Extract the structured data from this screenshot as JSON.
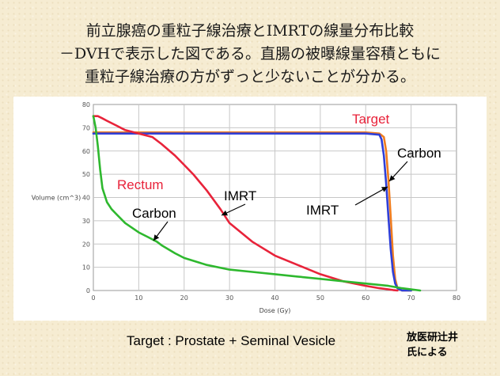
{
  "slide": {
    "heading_lines": [
      "前立腺癌の重粒子線治療とIMRTの線量分布比較",
      "－DVHで表示した図である。直腸の被曝線量容積ともに",
      "重粒子線治療の方がずっと少ないことが分かる。"
    ],
    "footnote": "Target : Prostate + Seminal Vesicle",
    "credit_lines": [
      "放医研辻井",
      "氏による"
    ]
  },
  "chart_data": {
    "type": "line",
    "xlabel": "Dose (Gy)",
    "ylabel": "Volume (cm^3)",
    "xlim": [
      0,
      80
    ],
    "ylim": [
      0,
      80
    ],
    "x_ticks": [
      0,
      10,
      20,
      30,
      40,
      50,
      60,
      70,
      80
    ],
    "y_ticks": [
      0,
      10,
      20,
      30,
      40,
      50,
      60,
      70,
      80
    ],
    "grid": true,
    "colors": {
      "red": "#e8233a",
      "orange": "#f07d1f",
      "blue": "#2f3fd8",
      "green": "#2eb82e"
    },
    "series": [
      {
        "group": "Target",
        "name": "Carbon",
        "color": "orange",
        "x": [
          0,
          20,
          40,
          60,
          63,
          64,
          64.5,
          65,
          65.5,
          66,
          66.5,
          67,
          68,
          70
        ],
        "y": [
          68,
          68,
          68,
          68,
          67.5,
          66,
          60,
          48,
          32,
          15,
          5,
          1,
          0,
          0
        ]
      },
      {
        "group": "Target",
        "name": "IMRT",
        "color": "blue",
        "x": [
          0,
          20,
          40,
          60,
          63,
          63.5,
          64,
          64.5,
          65,
          65.5,
          66,
          66.5,
          67,
          68,
          70
        ],
        "y": [
          67.5,
          67.5,
          67.5,
          67.5,
          67,
          65,
          58,
          46,
          32,
          18,
          8,
          3,
          1,
          0,
          0
        ]
      },
      {
        "group": "Rectum",
        "name": "IMRT",
        "color": "red",
        "x": [
          0,
          1,
          2,
          3,
          5,
          7,
          10,
          13,
          15,
          18,
          20,
          22,
          25,
          28,
          30,
          35,
          40,
          45,
          50,
          55,
          60,
          63,
          65,
          66,
          67
        ],
        "y": [
          75,
          75,
          74,
          73,
          71,
          69,
          67.5,
          66,
          63,
          58,
          54,
          50,
          43,
          35,
          29,
          21,
          15,
          11,
          7,
          4,
          2,
          1,
          0.5,
          0.2,
          0
        ]
      },
      {
        "group": "Rectum",
        "name": "Carbon",
        "color": "green",
        "x": [
          0,
          0.5,
          1,
          1.5,
          2,
          3,
          4,
          5,
          7,
          10,
          12,
          14,
          15,
          18,
          20,
          25,
          30,
          35,
          40,
          45,
          50,
          55,
          60,
          65,
          68,
          72
        ],
        "y": [
          75,
          70,
          62,
          52,
          44,
          38,
          35,
          33,
          29,
          25,
          23,
          21,
          19.5,
          16,
          14,
          11,
          9,
          8,
          7,
          6,
          5,
          4,
          3,
          2,
          1,
          0
        ]
      }
    ],
    "annotations": [
      {
        "text": "Target",
        "color": "red"
      },
      {
        "text": "Carbon",
        "color": "black"
      },
      {
        "text": "IMRT",
        "color": "black"
      },
      {
        "text": "Rectum",
        "color": "red"
      },
      {
        "text": "IMRT",
        "color": "black"
      },
      {
        "text": "Carbon",
        "color": "black"
      }
    ]
  }
}
